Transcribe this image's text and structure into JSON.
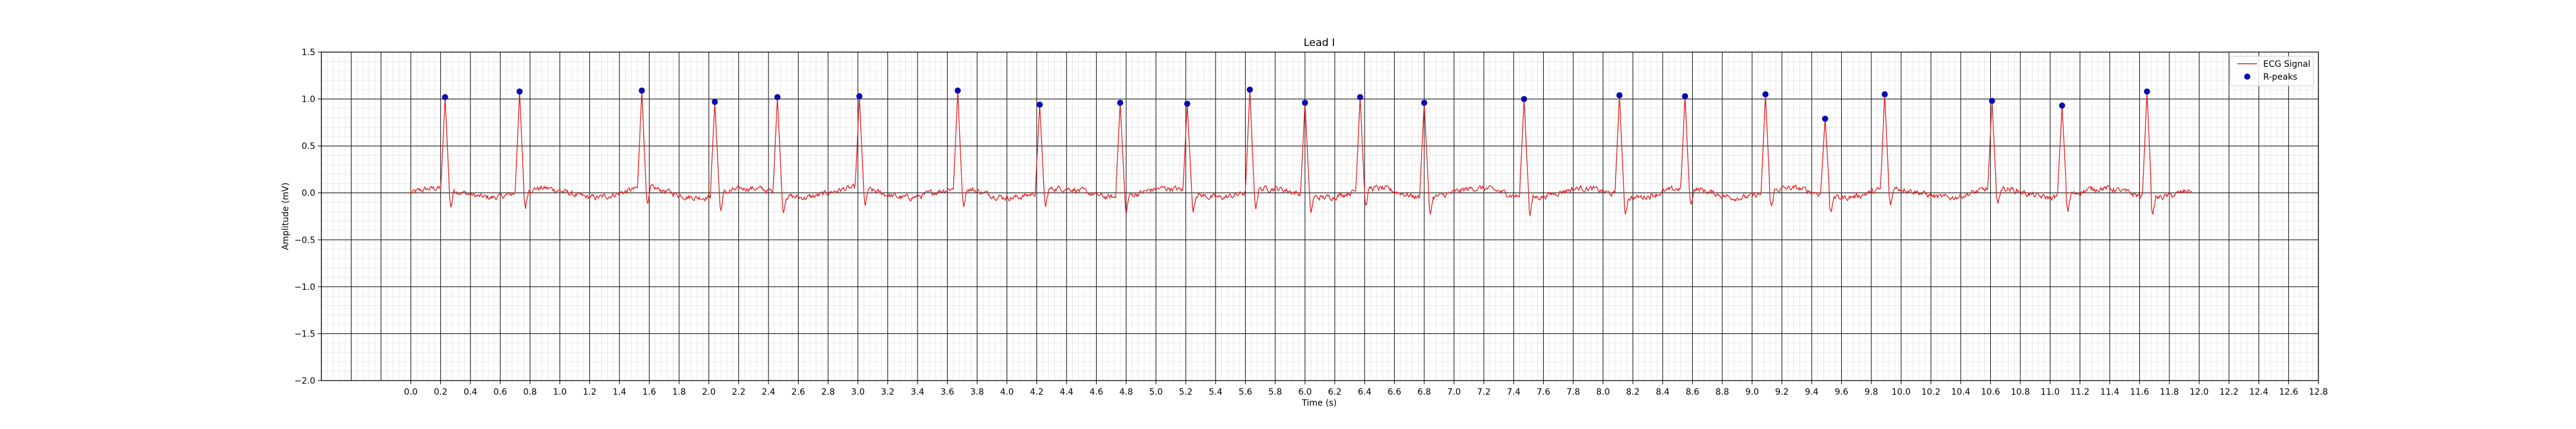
{
  "chart_data": {
    "type": "line",
    "title": "Lead I",
    "xlabel": "Time (s)",
    "ylabel": "Amplitude (mV)",
    "xlim": [
      -0.6,
      12.8
    ],
    "ylim": [
      -2.0,
      1.5
    ],
    "x_ticks": [
      0.0,
      0.2,
      0.4,
      0.6,
      0.8,
      1.0,
      1.2,
      1.4,
      1.6,
      1.8,
      2.0,
      2.2,
      2.4,
      2.6,
      2.8,
      3.0,
      3.2,
      3.4,
      3.6,
      3.8,
      4.0,
      4.2,
      4.4,
      4.6,
      4.8,
      5.0,
      5.2,
      5.4,
      5.6,
      5.8,
      6.0,
      6.2,
      6.4,
      6.6,
      6.8,
      7.0,
      7.2,
      7.4,
      7.6,
      7.8,
      8.0,
      8.2,
      8.4,
      8.6,
      8.8,
      9.0,
      9.2,
      9.4,
      9.6,
      9.8,
      10.0,
      10.2,
      10.4,
      10.6,
      10.8,
      11.0,
      11.2,
      11.4,
      11.6,
      11.8,
      12.0,
      12.2,
      12.4,
      12.6,
      12.8
    ],
    "y_ticks": [
      1.5,
      1.0,
      0.5,
      0.0,
      -0.5,
      -1.0,
      -1.5,
      -2.0
    ],
    "y_tick_labels": [
      "1.5",
      "1.0",
      "0.5",
      "0.0",
      "−0.5",
      "−1.0",
      "−1.5",
      "−2.0"
    ],
    "grid": true,
    "legend_position": "top-right",
    "series": [
      {
        "name": "ECG Signal",
        "kind": "line",
        "color": "#e31a1c",
        "x_start": 0.0,
        "x_end": 11.95,
        "baseline_noise": 0.06
      },
      {
        "name": "R-peaks",
        "kind": "scatter",
        "color": "#0b0bb0",
        "x": [
          0.23,
          0.73,
          1.55,
          2.04,
          2.46,
          3.01,
          3.67,
          4.22,
          4.76,
          5.21,
          5.63,
          6.0,
          6.37,
          6.8,
          7.47,
          8.11,
          8.55,
          9.09,
          9.49,
          9.89,
          10.61,
          11.08,
          11.65
        ],
        "y": [
          1.02,
          1.08,
          1.09,
          0.97,
          1.02,
          1.03,
          1.09,
          0.94,
          0.96,
          0.95,
          1.1,
          0.96,
          1.02,
          0.96,
          1.0,
          1.04,
          1.03,
          1.05,
          0.79,
          1.05,
          0.98,
          0.93,
          1.08
        ]
      }
    ]
  }
}
